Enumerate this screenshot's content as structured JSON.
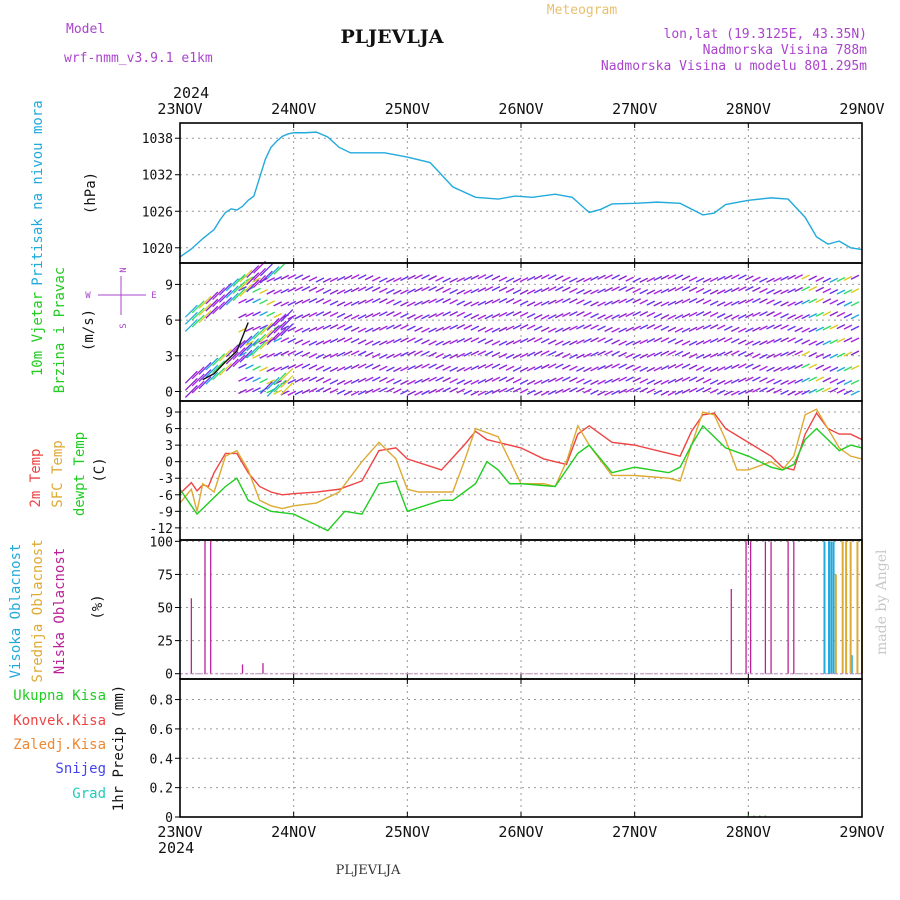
{
  "header": {
    "model_label": "Model",
    "model_name": "wrf-nmm_v3.9.1 e1km",
    "station": "PLJEVLJA",
    "meteogram": "Meteogram",
    "lonlat": "lon,lat (19.3125E, 43.35N)",
    "elevation": "Nadmorska Visina 788m",
    "model_elevation": "Nadmorska Visina u modelu 801.295m",
    "year_top": "2024",
    "year_bottom": "2024",
    "footer_station": "PLJEVLJA",
    "credit": "made by Angel"
  },
  "colors": {
    "pressure": "#22aadd",
    "temp2m": "#ee4444",
    "sfc": "#ddaa33",
    "dewpt": "#22cc22",
    "high_cloud": "#22aadd",
    "mid_cloud": "#ddaa33",
    "low_cloud": "#bb2299",
    "header_purple": "#aa44cc"
  },
  "x_axis": {
    "labels": [
      "23NOV",
      "24NOV",
      "25NOV",
      "26NOV",
      "27NOV",
      "28NOV",
      "29NOV"
    ]
  },
  "chart_data": [
    {
      "type": "line",
      "id": "pressure",
      "ylabel": [
        "Pritisak na nivou mora",
        "(hPa)"
      ],
      "ylim": [
        1017.5,
        1040.5
      ],
      "yticks": [
        1020,
        1026,
        1032,
        1038
      ],
      "grid": true,
      "series": [
        {
          "x": [
            0,
            0.1,
            0.2,
            0.3,
            0.35,
            0.4,
            0.45,
            0.5,
            0.55,
            0.6,
            0.65,
            0.7,
            0.75,
            0.8,
            0.85,
            0.9,
            0.95,
            1.0,
            1.1,
            1.2,
            1.3,
            1.4,
            1.5,
            1.6,
            1.8,
            2.0,
            2.2,
            2.4,
            2.6,
            2.8,
            2.95,
            3.1,
            3.3,
            3.45,
            3.6,
            3.7,
            3.8,
            4.0,
            4.2,
            4.4,
            4.6,
            4.7,
            4.8,
            5.0,
            5.2,
            5.35,
            5.5,
            5.6,
            5.7,
            5.8,
            5.9,
            6.0
          ],
          "values": [
            1018.5,
            1019.8,
            1021.5,
            1023.0,
            1024.5,
            1025.8,
            1026.4,
            1026.2,
            1026.8,
            1027.8,
            1028.5,
            1031.5,
            1034.5,
            1036.5,
            1037.5,
            1038.3,
            1038.7,
            1038.9,
            1038.9,
            1039.0,
            1038.2,
            1036.5,
            1035.6,
            1035.6,
            1035.6,
            1034.9,
            1034.0,
            1030.0,
            1028.3,
            1028.0,
            1028.5,
            1028.3,
            1028.8,
            1028.3,
            1025.8,
            1026.3,
            1027.2,
            1027.3,
            1027.5,
            1027.3,
            1025.4,
            1025.7,
            1027.1,
            1027.8,
            1028.2,
            1028.0,
            1025.0,
            1021.8,
            1020.6,
            1021.1,
            1020.0,
            1019.7
          ]
        }
      ]
    },
    {
      "type": "line",
      "id": "wind",
      "ylabel": [
        "10m Vjetar",
        "Brzina i Pravac",
        "(m/s)"
      ],
      "compass": [
        "N",
        "W",
        "E",
        "S"
      ],
      "ylim": [
        -0.8,
        10.8
      ],
      "yticks": [
        0,
        3,
        6,
        9
      ],
      "grid": true,
      "note": "dense wind barbs drawn as glyph rows",
      "series": [
        {
          "x": [
            0.2,
            0.3,
            0.4,
            0.5,
            0.55,
            0.6
          ],
          "values": [
            1.0,
            1.5,
            2.5,
            3.4,
            4.6,
            5.8
          ]
        }
      ]
    },
    {
      "type": "line",
      "id": "temperature",
      "ylabel": [
        "2m Temp",
        "SFC Temp",
        "dewpt Temp",
        "(C)"
      ],
      "ylim": [
        -14.2,
        11.0
      ],
      "yticks": [
        -12,
        -9,
        -6,
        -3,
        0,
        3,
        6,
        9
      ],
      "grid": true,
      "series": [
        {
          "name": "2m Temp",
          "x": [
            0,
            0.1,
            0.15,
            0.2,
            0.25,
            0.3,
            0.4,
            0.5,
            0.6,
            0.7,
            0.8,
            0.9,
            1.0,
            1.2,
            1.4,
            1.6,
            1.75,
            1.9,
            2.0,
            2.3,
            2.3,
            2.5,
            2.6,
            2.7,
            2.8,
            3.0,
            3.2,
            3.3,
            3.4,
            3.5,
            3.6,
            3.8,
            4.0,
            4.3,
            4.4,
            4.5,
            4.6,
            4.7,
            4.8,
            5.0,
            5.2,
            5.3,
            5.4,
            5.5,
            5.6,
            5.7,
            5.8,
            5.9,
            6.0
          ],
          "values": [
            -5.8,
            -3.8,
            -5.3,
            -4.2,
            -4.5,
            -2.0,
            1.5,
            1.5,
            -2.0,
            -4.5,
            -5.5,
            -6.0,
            -5.8,
            -5.5,
            -5.0,
            -3.5,
            2.0,
            2.5,
            0.5,
            -1.5,
            -1.5,
            3.0,
            5.5,
            4.0,
            3.5,
            2.5,
            0.5,
            0,
            -0.5,
            5.0,
            6.5,
            3.5,
            3.0,
            1.5,
            1.0,
            5.5,
            8.5,
            8.8,
            6.0,
            3.5,
            1.0,
            -1.0,
            -1.5,
            5.0,
            8.8,
            6.0,
            5.0,
            5.0,
            4.0
          ]
        },
        {
          "name": "SFC Temp",
          "x": [
            0,
            0.1,
            0.15,
            0.2,
            0.3,
            0.4,
            0.5,
            0.6,
            0.7,
            0.8,
            0.9,
            1.0,
            1.2,
            1.4,
            1.6,
            1.75,
            1.9,
            2.0,
            2.1,
            2.3,
            2.4,
            2.5,
            2.6,
            2.8,
            3.0,
            3.2,
            3.3,
            3.4,
            3.5,
            3.6,
            3.8,
            4.0,
            4.3,
            4.4,
            4.5,
            4.6,
            4.7,
            4.8,
            4.9,
            5.0,
            5.2,
            5.3,
            5.4,
            5.5,
            5.6,
            5.7,
            5.8,
            5.9,
            6.0
          ],
          "values": [
            -7.5,
            -5.0,
            -9.0,
            -4.0,
            -5.5,
            1.0,
            2.0,
            -1.5,
            -7.0,
            -8.0,
            -8.5,
            -8.0,
            -7.5,
            -5.5,
            0,
            3.5,
            0.5,
            -5.0,
            -5.5,
            -5.5,
            -5.5,
            0,
            6.0,
            4.5,
            -4.0,
            -4.0,
            -4.5,
            0,
            6.5,
            3.0,
            -2.5,
            -2.5,
            -3.0,
            -3.5,
            3.0,
            9.0,
            8.5,
            4.0,
            -1.5,
            -1.5,
            0,
            -1.5,
            1.0,
            8.5,
            9.5,
            6.0,
            2.5,
            1.0,
            0.5
          ]
        },
        {
          "name": "dewpt Temp",
          "x": [
            0,
            0.15,
            0.3,
            0.4,
            0.5,
            0.6,
            0.8,
            1.0,
            1.2,
            1.3,
            1.45,
            1.6,
            1.75,
            1.9,
            2.0,
            2.3,
            2.4,
            2.6,
            2.7,
            2.8,
            2.9,
            3.0,
            3.3,
            3.5,
            3.6,
            3.8,
            4.0,
            4.3,
            4.4,
            4.5,
            4.6,
            4.7,
            4.8,
            5.0,
            5.2,
            5.3,
            5.4,
            5.5,
            5.6,
            5.7,
            5.8,
            5.9,
            6.0
          ],
          "values": [
            -5.0,
            -9.5,
            -6.5,
            -4.5,
            -3.0,
            -7.0,
            -9.0,
            -9.5,
            -11.5,
            -12.5,
            -9.0,
            -9.5,
            -4.0,
            -3.5,
            -9.0,
            -7.0,
            -7.0,
            -4.0,
            0,
            -1.5,
            -4.0,
            -4.0,
            -4.5,
            1.5,
            3.0,
            -2.0,
            -1.0,
            -2.0,
            -1.0,
            3.0,
            6.5,
            4.5,
            2.5,
            1.0,
            -1.0,
            -1.5,
            -0.5,
            4.0,
            6.0,
            4.0,
            2.0,
            3.0,
            2.5
          ]
        }
      ]
    },
    {
      "type": "bar",
      "id": "clouds",
      "ylabel": [
        "Visoka Oblacnost",
        "Srednja Oblacnost",
        "Niska Oblacnost",
        "(%)"
      ],
      "ylim": [
        -4,
        101
      ],
      "yticks": [
        0,
        25,
        50,
        75,
        100
      ],
      "grid": true,
      "series": [
        {
          "name": "Niska Oblacnost",
          "x": [
            0.1,
            0.22,
            0.27,
            0.55,
            0.73,
            4.85,
            4.98,
            5.02,
            5.15,
            5.2,
            5.35,
            5.4
          ],
          "values": [
            57,
            100,
            100,
            7,
            8,
            64,
            100,
            100,
            100,
            100,
            100,
            100
          ]
        },
        {
          "name": "Visoka Oblacnost",
          "x": [
            5.67,
            5.71,
            5.73,
            5.75,
            5.91
          ],
          "values": [
            100,
            100,
            100,
            100,
            14
          ]
        },
        {
          "name": "Srednja Oblacnost",
          "x": [
            5.77,
            5.83,
            5.86,
            5.9,
            5.96,
            6.0
          ],
          "values": [
            75,
            100,
            100,
            100,
            100,
            100
          ]
        }
      ]
    },
    {
      "type": "bar",
      "id": "precip",
      "ylabel": [
        "1hr Precip (mm)"
      ],
      "legend": [
        "Ukupna Kisa",
        "Konvek.Kisa",
        "Zaledj.Kisa",
        "Snijeg",
        "Grad"
      ],
      "ylim": [
        0,
        0.94
      ],
      "yticks": [
        0,
        0.2,
        0.4,
        0.6,
        0.8
      ],
      "grid": true,
      "series": [
        {
          "name": "Ukupna Kisa",
          "x": [
            5.0,
            5.05,
            5.1,
            5.15
          ],
          "values": [
            0.01,
            0.01,
            0.01,
            0.01
          ]
        }
      ]
    }
  ]
}
